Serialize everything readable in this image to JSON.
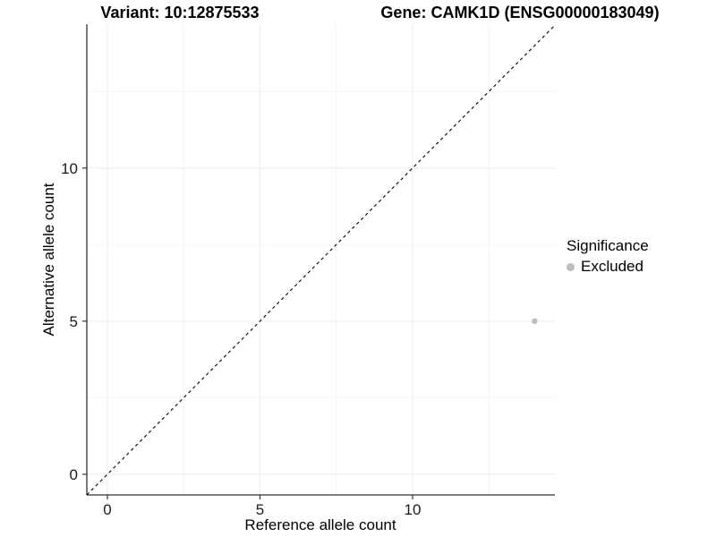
{
  "chart_data": {
    "type": "scatter",
    "title_left": "Variant: 10:12875533",
    "title_right": "Gene: CAMK1D (ENSG00000183049)",
    "xlabel": "Reference allele count",
    "ylabel": "Alternative allele count",
    "xlim": [
      -0.675,
      14.665
    ],
    "ylim": [
      -0.675,
      14.7
    ],
    "x_major_ticks": [
      0,
      5,
      10
    ],
    "y_major_ticks": [
      0,
      5,
      10
    ],
    "x_minor_ticks": [
      2.5,
      7.5,
      12.5
    ],
    "y_minor_ticks": [
      2.5,
      7.5,
      12.5
    ],
    "grid": true,
    "reference_line": {
      "type": "identity",
      "slope": 1,
      "intercept": 0,
      "style": "dashed"
    },
    "series": [
      {
        "name": "Excluded",
        "color": "#bebebe",
        "points": [
          {
            "x": 14,
            "y": 5
          }
        ]
      }
    ],
    "legend": {
      "title": "Significance",
      "position": "right",
      "items": [
        {
          "label": "Excluded",
          "color": "#bebebe"
        }
      ]
    },
    "colors": {
      "background": "#ffffff",
      "grid_major": "#ececec",
      "grid_minor": "#f4f4f4",
      "axis_line": "#333333",
      "tick_label": "#1a1a1a",
      "reference_line": "#000000",
      "point": "#bebebe"
    }
  }
}
